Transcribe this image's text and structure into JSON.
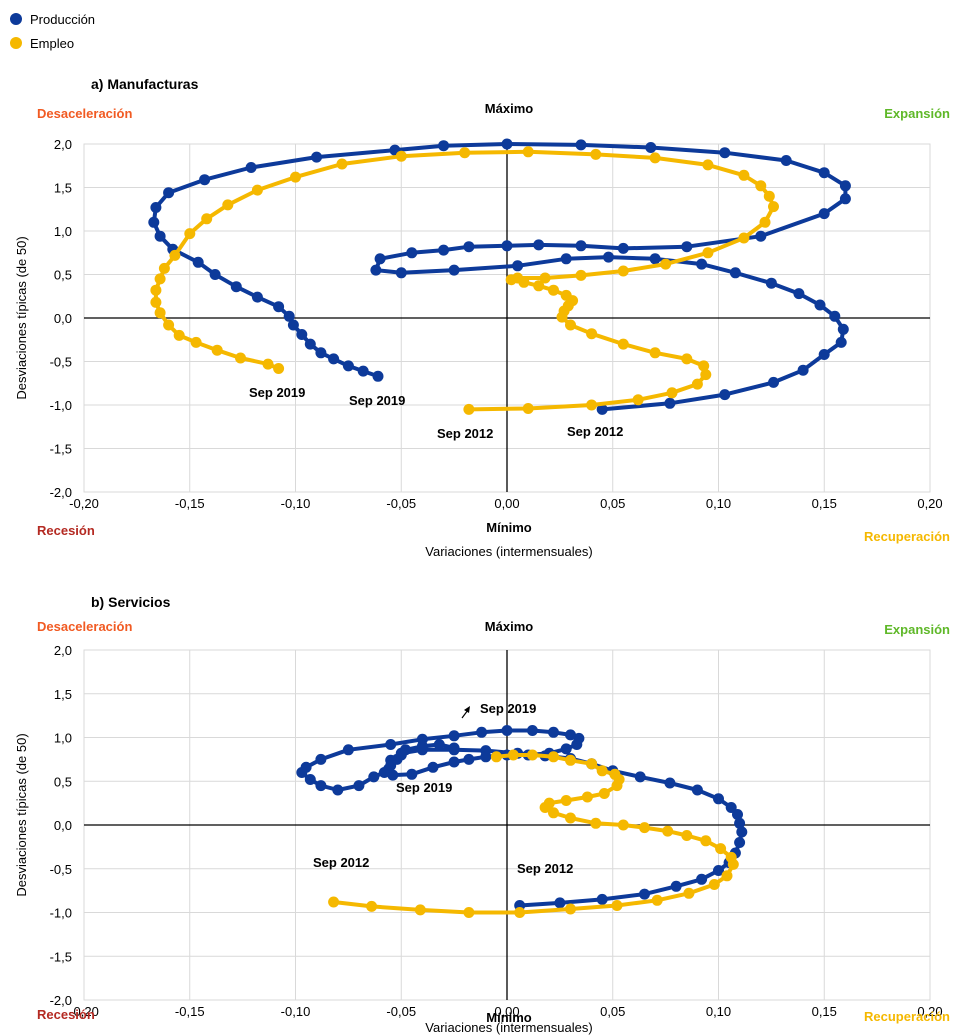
{
  "legend": [
    {
      "label": "Producción",
      "color": "#0d3a9a"
    },
    {
      "label": "Empleo",
      "color": "#f5b800"
    }
  ],
  "quadrant_labels": {
    "top_left": "Desaceleración",
    "top_right": "Expansión",
    "bottom_left": "Recesión",
    "bottom_right": "Recuperación",
    "top_center": "Máximo",
    "bottom_center": "Mínimo",
    "colors": {
      "desaceleracion": "#f15a22",
      "expansion": "#5fb829",
      "recesion": "#b42a22",
      "recuperacion": "#f5b800"
    }
  },
  "chart_data": [
    {
      "type": "scatter",
      "title": "a) Manufacturas",
      "xlabel": "Variaciones (intermensuales)",
      "ylabel": "Desviaciones típicas (de 50)",
      "xlim": [
        -0.2,
        0.2
      ],
      "ylim": [
        -2.0,
        2.0
      ],
      "x_ticks": [
        "-0,20",
        "-0,15",
        "-0,10",
        "-0,05",
        "0,00",
        "0,05",
        "0,10",
        "0,15",
        "0,20"
      ],
      "y_ticks": [
        "2,0",
        "1,5",
        "1,0",
        "0,5",
        "0,0",
        "-0,5",
        "-1,0",
        "-1,5",
        "-2,0"
      ],
      "grid": true,
      "series": [
        {
          "name": "Producción",
          "color": "#0d3a9a",
          "points": [
            [
              0.045,
              -1.05
            ],
            [
              0.077,
              -0.98
            ],
            [
              0.103,
              -0.88
            ],
            [
              0.126,
              -0.74
            ],
            [
              0.14,
              -0.6
            ],
            [
              0.15,
              -0.42
            ],
            [
              0.158,
              -0.28
            ],
            [
              0.159,
              -0.13
            ],
            [
              0.155,
              0.02
            ],
            [
              0.148,
              0.15
            ],
            [
              0.138,
              0.28
            ],
            [
              0.125,
              0.4
            ],
            [
              0.108,
              0.52
            ],
            [
              0.092,
              0.62
            ],
            [
              0.07,
              0.68
            ],
            [
              0.048,
              0.7
            ],
            [
              0.028,
              0.68
            ],
            [
              0.005,
              0.6
            ],
            [
              -0.025,
              0.55
            ],
            [
              -0.05,
              0.52
            ],
            [
              -0.062,
              0.55
            ],
            [
              -0.06,
              0.68
            ],
            [
              -0.045,
              0.75
            ],
            [
              -0.03,
              0.78
            ],
            [
              -0.018,
              0.82
            ],
            [
              0.0,
              0.83
            ],
            [
              0.015,
              0.84
            ],
            [
              0.035,
              0.83
            ],
            [
              0.055,
              0.8
            ],
            [
              0.085,
              0.82
            ],
            [
              0.12,
              0.94
            ],
            [
              0.15,
              1.2
            ],
            [
              0.16,
              1.37
            ],
            [
              0.16,
              1.52
            ],
            [
              0.15,
              1.67
            ],
            [
              0.132,
              1.81
            ],
            [
              0.103,
              1.9
            ],
            [
              0.068,
              1.96
            ],
            [
              0.035,
              1.99
            ],
            [
              0.0,
              2.0
            ],
            [
              -0.03,
              1.98
            ],
            [
              -0.053,
              1.93
            ],
            [
              -0.09,
              1.85
            ],
            [
              -0.121,
              1.73
            ],
            [
              -0.143,
              1.59
            ],
            [
              -0.16,
              1.44
            ],
            [
              -0.166,
              1.27
            ],
            [
              -0.167,
              1.1
            ],
            [
              -0.164,
              0.94
            ],
            [
              -0.158,
              0.79
            ],
            [
              -0.146,
              0.64
            ],
            [
              -0.138,
              0.5
            ],
            [
              -0.128,
              0.36
            ],
            [
              -0.118,
              0.24
            ],
            [
              -0.108,
              0.13
            ],
            [
              -0.103,
              0.02
            ],
            [
              -0.101,
              -0.08
            ],
            [
              -0.097,
              -0.19
            ],
            [
              -0.093,
              -0.3
            ],
            [
              -0.088,
              -0.4
            ],
            [
              -0.082,
              -0.47
            ],
            [
              -0.075,
              -0.55
            ],
            [
              -0.068,
              -0.61
            ],
            [
              -0.061,
              -0.67
            ]
          ]
        },
        {
          "name": "Empleo",
          "color": "#f5b800",
          "points": [
            [
              -0.018,
              -1.05
            ],
            [
              0.01,
              -1.04
            ],
            [
              0.04,
              -1.0
            ],
            [
              0.062,
              -0.94
            ],
            [
              0.078,
              -0.86
            ],
            [
              0.09,
              -0.76
            ],
            [
              0.094,
              -0.65
            ],
            [
              0.093,
              -0.55
            ],
            [
              0.085,
              -0.47
            ],
            [
              0.07,
              -0.4
            ],
            [
              0.055,
              -0.3
            ],
            [
              0.04,
              -0.18
            ],
            [
              0.03,
              -0.08
            ],
            [
              0.026,
              0.01
            ],
            [
              0.027,
              0.08
            ],
            [
              0.029,
              0.14
            ],
            [
              0.031,
              0.2
            ],
            [
              0.028,
              0.26
            ],
            [
              0.022,
              0.32
            ],
            [
              0.015,
              0.37
            ],
            [
              0.008,
              0.41
            ],
            [
              0.002,
              0.44
            ],
            [
              0.005,
              0.46
            ],
            [
              0.018,
              0.46
            ],
            [
              0.035,
              0.49
            ],
            [
              0.055,
              0.54
            ],
            [
              0.075,
              0.62
            ],
            [
              0.095,
              0.75
            ],
            [
              0.112,
              0.92
            ],
            [
              0.122,
              1.1
            ],
            [
              0.126,
              1.28
            ],
            [
              0.124,
              1.4
            ],
            [
              0.12,
              1.52
            ],
            [
              0.112,
              1.64
            ],
            [
              0.095,
              1.76
            ],
            [
              0.07,
              1.84
            ],
            [
              0.042,
              1.88
            ],
            [
              0.01,
              1.91
            ],
            [
              -0.02,
              1.9
            ],
            [
              -0.05,
              1.86
            ],
            [
              -0.078,
              1.77
            ],
            [
              -0.1,
              1.62
            ],
            [
              -0.118,
              1.47
            ],
            [
              -0.132,
              1.3
            ],
            [
              -0.142,
              1.14
            ],
            [
              -0.15,
              0.97
            ],
            [
              -0.157,
              0.72
            ],
            [
              -0.162,
              0.57
            ],
            [
              -0.164,
              0.45
            ],
            [
              -0.166,
              0.32
            ],
            [
              -0.166,
              0.18
            ],
            [
              -0.164,
              0.06
            ],
            [
              -0.16,
              -0.08
            ],
            [
              -0.155,
              -0.2
            ],
            [
              -0.147,
              -0.28
            ],
            [
              -0.137,
              -0.37
            ],
            [
              -0.126,
              -0.46
            ],
            [
              -0.113,
              -0.53
            ],
            [
              -0.108,
              -0.58
            ]
          ]
        }
      ],
      "annotations": [
        {
          "text": "Sep 2019",
          "series": "Empleo"
        },
        {
          "text": "Sep 2019",
          "series": "Producción"
        },
        {
          "text": "Sep 2012",
          "series": "Empleo"
        },
        {
          "text": "Sep 2012",
          "series": "Producción"
        }
      ]
    },
    {
      "type": "scatter",
      "title": "b) Servicios",
      "xlabel": "Variaciones (intermensuales)",
      "ylabel": "Desviaciones típicas (de 50)",
      "xlim": [
        -0.2,
        0.2
      ],
      "ylim": [
        -2.0,
        2.0
      ],
      "x_ticks": [
        "-0,20",
        "-0,15",
        "-0,10",
        "-0,05",
        "0,00",
        "0,05",
        "0,10",
        "0,15",
        "0,20"
      ],
      "y_ticks": [
        "2,0",
        "1,5",
        "1,0",
        "0,5",
        "0,0",
        "-0,5",
        "-1,0",
        "-1,5",
        "-2,0"
      ],
      "grid": true,
      "series": [
        {
          "name": "Producción",
          "color": "#0d3a9a",
          "points": [
            [
              0.006,
              -0.92
            ],
            [
              0.025,
              -0.89
            ],
            [
              0.045,
              -0.85
            ],
            [
              0.065,
              -0.79
            ],
            [
              0.08,
              -0.7
            ],
            [
              0.092,
              -0.62
            ],
            [
              0.1,
              -0.52
            ],
            [
              0.105,
              -0.43
            ],
            [
              0.108,
              -0.32
            ],
            [
              0.11,
              -0.2
            ],
            [
              0.111,
              -0.08
            ],
            [
              0.11,
              0.02
            ],
            [
              0.109,
              0.12
            ],
            [
              0.106,
              0.2
            ],
            [
              0.1,
              0.3
            ],
            [
              0.09,
              0.4
            ],
            [
              0.077,
              0.48
            ],
            [
              0.063,
              0.55
            ],
            [
              0.05,
              0.62
            ],
            [
              0.04,
              0.7
            ],
            [
              0.03,
              0.76
            ],
            [
              0.018,
              0.79
            ],
            [
              0.005,
              0.82
            ],
            [
              -0.01,
              0.85
            ],
            [
              -0.025,
              0.86
            ],
            [
              -0.04,
              0.86
            ],
            [
              -0.05,
              0.82
            ],
            [
              -0.055,
              0.74
            ],
            [
              -0.056,
              0.64
            ],
            [
              -0.054,
              0.57
            ],
            [
              -0.045,
              0.58
            ],
            [
              -0.035,
              0.66
            ],
            [
              -0.025,
              0.72
            ],
            [
              -0.018,
              0.75
            ],
            [
              -0.01,
              0.78
            ],
            [
              0.0,
              0.8
            ],
            [
              0.01,
              0.8
            ],
            [
              0.02,
              0.82
            ],
            [
              0.028,
              0.87
            ],
            [
              0.033,
              0.92
            ],
            [
              0.034,
              0.99
            ],
            [
              0.03,
              1.03
            ],
            [
              0.022,
              1.06
            ],
            [
              0.012,
              1.08
            ],
            [
              0.0,
              1.08
            ],
            [
              -0.012,
              1.06
            ],
            [
              -0.025,
              1.02
            ],
            [
              -0.04,
              0.98
            ],
            [
              -0.055,
              0.92
            ],
            [
              -0.075,
              0.86
            ],
            [
              -0.088,
              0.75
            ],
            [
              -0.095,
              0.66
            ],
            [
              -0.097,
              0.6
            ],
            [
              -0.093,
              0.52
            ],
            [
              -0.088,
              0.45
            ],
            [
              -0.08,
              0.4
            ],
            [
              -0.07,
              0.45
            ],
            [
              -0.063,
              0.55
            ],
            [
              -0.058,
              0.6
            ],
            [
              -0.055,
              0.68
            ],
            [
              -0.052,
              0.75
            ],
            [
              -0.05,
              0.8
            ],
            [
              -0.048,
              0.86
            ],
            [
              -0.04,
              0.9
            ],
            [
              -0.032,
              0.92
            ],
            [
              -0.025,
              0.88
            ]
          ]
        },
        {
          "name": "Empleo",
          "color": "#f5b800",
          "points": [
            [
              -0.082,
              -0.88
            ],
            [
              -0.064,
              -0.93
            ],
            [
              -0.041,
              -0.97
            ],
            [
              -0.018,
              -1.0
            ],
            [
              0.006,
              -1.0
            ],
            [
              0.03,
              -0.96
            ],
            [
              0.052,
              -0.92
            ],
            [
              0.071,
              -0.86
            ],
            [
              0.086,
              -0.78
            ],
            [
              0.098,
              -0.68
            ],
            [
              0.104,
              -0.58
            ],
            [
              0.107,
              -0.45
            ],
            [
              0.106,
              -0.37
            ],
            [
              0.101,
              -0.27
            ],
            [
              0.094,
              -0.18
            ],
            [
              0.085,
              -0.12
            ],
            [
              0.076,
              -0.07
            ],
            [
              0.065,
              -0.03
            ],
            [
              0.055,
              0.0
            ],
            [
              0.042,
              0.02
            ],
            [
              0.03,
              0.08
            ],
            [
              0.022,
              0.14
            ],
            [
              0.018,
              0.2
            ],
            [
              0.02,
              0.25
            ],
            [
              0.028,
              0.28
            ],
            [
              0.038,
              0.32
            ],
            [
              0.046,
              0.36
            ],
            [
              0.052,
              0.45
            ],
            [
              0.053,
              0.52
            ],
            [
              0.051,
              0.58
            ],
            [
              0.045,
              0.62
            ],
            [
              0.04,
              0.7
            ],
            [
              0.03,
              0.74
            ],
            [
              0.022,
              0.78
            ],
            [
              0.012,
              0.8
            ],
            [
              0.003,
              0.8
            ],
            [
              -0.005,
              0.78
            ]
          ]
        }
      ],
      "annotations": [
        {
          "text": "Sep 2019",
          "series": "Empleo"
        },
        {
          "text": "Sep 2019",
          "series": "Producción"
        },
        {
          "text": "Sep 2012",
          "series": "Empleo"
        },
        {
          "text": "Sep 2012",
          "series": "Producción"
        }
      ]
    }
  ]
}
